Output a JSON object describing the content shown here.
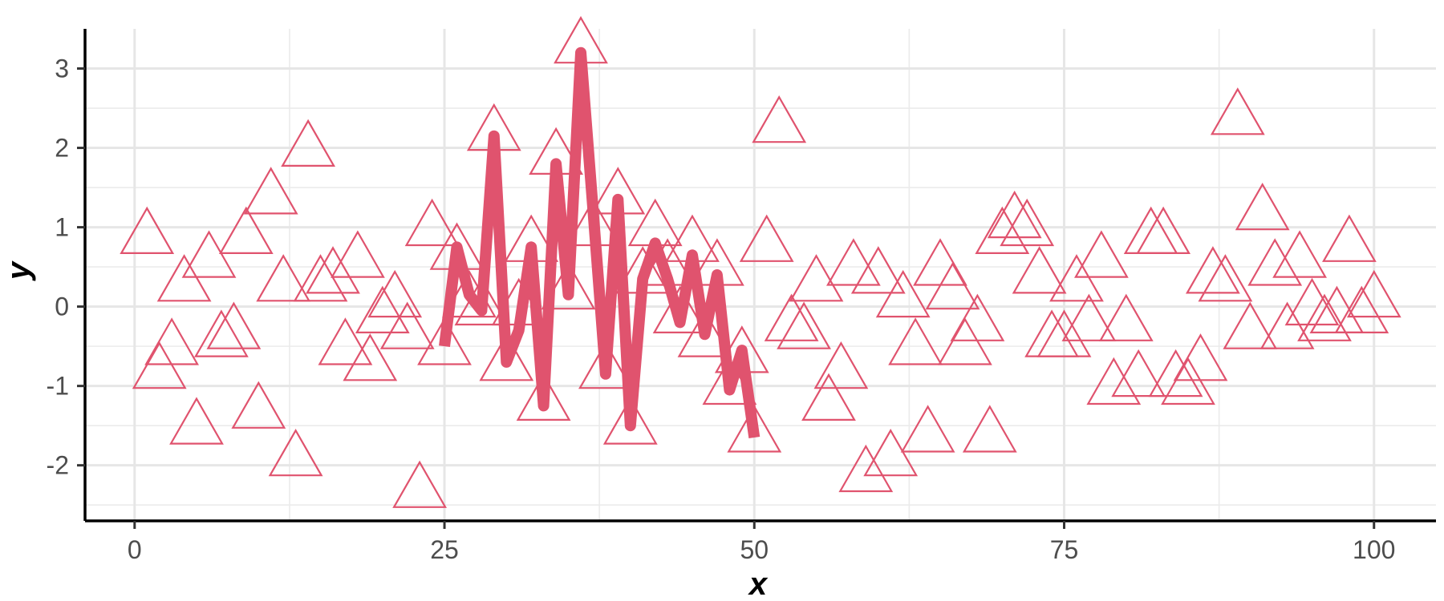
{
  "chart_data": {
    "type": "scatter",
    "xlabel": "x",
    "ylabel": "y",
    "xlim": [
      -4,
      105
    ],
    "ylim": [
      -2.7,
      3.5
    ],
    "x_ticks": [
      0,
      25,
      50,
      75,
      100
    ],
    "x_tick_labels": [
      "0",
      "25",
      "50",
      "75",
      "100"
    ],
    "y_ticks": [
      -2,
      -1,
      0,
      1,
      2,
      3
    ],
    "y_tick_labels": [
      "-2",
      "-1",
      "0",
      "1",
      "2",
      "3"
    ],
    "x_minor_ticks": [
      12.5,
      37.5,
      62.5,
      87.5
    ],
    "y_minor_ticks": [
      -2.5,
      -1.5,
      -0.5,
      0.5,
      1.5,
      2.5
    ],
    "grid": true,
    "legend": "none",
    "color": "#e0536e",
    "series": [
      {
        "kind": "points",
        "marker": "open-triangle",
        "x": [
          1,
          2,
          3,
          4,
          5,
          6,
          7,
          8,
          9,
          10,
          11,
          12,
          13,
          14,
          15,
          16,
          17,
          18,
          19,
          20,
          21,
          22,
          23,
          24,
          25,
          26,
          27,
          28,
          29,
          30,
          31,
          32,
          33,
          34,
          35,
          36,
          37,
          38,
          39,
          40,
          41,
          42,
          43,
          44,
          45,
          46,
          47,
          48,
          49,
          50,
          51,
          52,
          53,
          54,
          55,
          56,
          57,
          58,
          59,
          60,
          61,
          62,
          63,
          64,
          65,
          66,
          67,
          68,
          69,
          70,
          71,
          72,
          73,
          74,
          75,
          76,
          77,
          78,
          79,
          80,
          81,
          82,
          83,
          84,
          85,
          86,
          87,
          88,
          89,
          90,
          91,
          92,
          93,
          94,
          95,
          96,
          97,
          98,
          99,
          100
        ],
        "y": [
          0.9,
          -0.8,
          -0.5,
          0.3,
          -1.5,
          0.6,
          -0.4,
          -0.3,
          0.9,
          -1.3,
          1.4,
          0.3,
          -1.9,
          2.0,
          0.3,
          0.4,
          -0.5,
          0.6,
          -0.7,
          -0.1,
          0.1,
          -0.3,
          -2.3,
          1.0,
          -0.5,
          0.7,
          0.1,
          0.0,
          2.2,
          -0.7,
          0.0,
          0.8,
          -1.2,
          1.9,
          0.2,
          3.3,
          1.0,
          -0.8,
          1.4,
          -1.5,
          0.4,
          1.0,
          0.5,
          -0.1,
          0.8,
          -0.4,
          0.5,
          -1.0,
          -0.6,
          -1.6,
          0.8,
          2.3,
          -0.2,
          -0.3,
          0.3,
          -1.2,
          -0.8,
          0.5,
          -2.1,
          0.4,
          -1.9,
          0.1,
          -0.5,
          -1.6,
          0.5,
          0.2,
          -0.5,
          -0.2,
          -1.6,
          0.9,
          1.1,
          1.0,
          0.4,
          -0.4,
          -0.4,
          0.3,
          -0.2,
          0.6,
          -1.0,
          -0.2,
          -0.9,
          0.9,
          0.9,
          -0.9,
          -1.0,
          -0.7,
          0.4,
          0.3,
          2.4,
          -0.3,
          1.2,
          0.5,
          -0.3,
          0.6,
          0.0,
          -0.2,
          -0.1,
          0.8,
          -0.1,
          0.1
        ]
      },
      {
        "kind": "line",
        "x": [
          25,
          26,
          27,
          28,
          29,
          30,
          31,
          32,
          33,
          34,
          35,
          36,
          37,
          38,
          39,
          40,
          41,
          42,
          43,
          44,
          45,
          46,
          47,
          48,
          49,
          50
        ],
        "y": [
          -0.5,
          0.75,
          0.15,
          -0.05,
          2.15,
          -0.7,
          -0.3,
          0.75,
          -1.25,
          1.8,
          0.15,
          3.2,
          1.2,
          -0.85,
          1.35,
          -1.5,
          0.35,
          0.8,
          0.35,
          -0.2,
          0.65,
          -0.35,
          0.4,
          -1.05,
          -0.55,
          -1.65
        ]
      }
    ]
  }
}
